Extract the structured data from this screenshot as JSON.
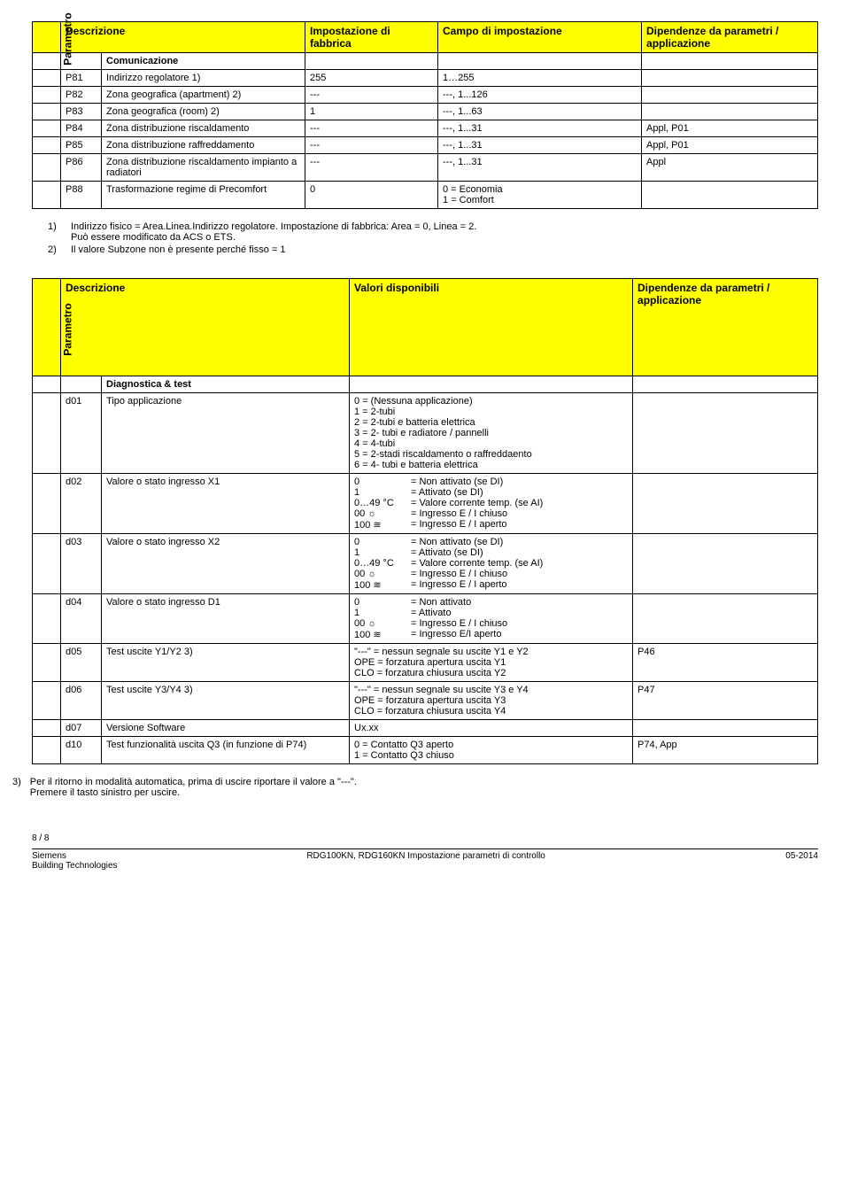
{
  "table1": {
    "headers": [
      "Parametro",
      "Descrizione",
      "Impostazione di fabbrica",
      "Campo di impostazione",
      "Dipendenze da parametri / applicazione"
    ],
    "section": "Comunicazione",
    "rows": [
      {
        "p": "P81",
        "d": "Indirizzo regolatore 1)",
        "f": "255",
        "c": "1…255",
        "dep": ""
      },
      {
        "p": "P82",
        "d": "Zona geografica (apartment) 2)",
        "f": "---",
        "c": "---, 1...126",
        "dep": ""
      },
      {
        "p": "P83",
        "d": "Zona geografica (room) 2)",
        "f": "1",
        "c": "---, 1...63",
        "dep": ""
      },
      {
        "p": "P84",
        "d": "Zona distribuzione riscaldamento",
        "f": "---",
        "c": "---, 1...31",
        "dep": "Appl, P01"
      },
      {
        "p": "P85",
        "d": "Zona distribuzione raffreddamento",
        "f": "---",
        "c": "---, 1...31",
        "dep": "Appl, P01"
      },
      {
        "p": "P86",
        "d": "Zona distribuzione riscaldamento impianto a radiatori",
        "f": "---",
        "c": "---, 1...31",
        "dep": "Appl"
      },
      {
        "p": "P88",
        "d": "Trasformazione regime di Precomfort",
        "f": "0",
        "c": "0 = Economia\n1 = Comfort",
        "dep": ""
      }
    ]
  },
  "notes1": [
    "Indirizzo fisico = Area.Linea.Indirizzo regolatore. Impostazione di fabbrica: Area  = 0, Linea = 2.\nPuò essere modificato da ACS o ETS.",
    "Il valore Subzone non è presente perché fisso = 1"
  ],
  "table2": {
    "headers": [
      "Parametro",
      "Descrizione",
      "Valori disponibili",
      "Dipendenze da parametri / applicazione"
    ],
    "section": "Diagnostica & test",
    "rows": [
      {
        "p": "d01",
        "d": "Tipo applicazione",
        "v": [
          [
            "0 = (Nessuna applicazione)",
            ""
          ],
          [
            "1 = 2-tubi",
            ""
          ],
          [
            "2 = 2-tubi e batteria elettrica",
            ""
          ],
          [
            "3 = 2- tubi e radiatore / pannelli",
            ""
          ],
          [
            "4 = 4-tubi",
            ""
          ],
          [
            "5 = 2-stadi riscaldamento o raffreddaento",
            ""
          ],
          [
            "6 = 4- tubi e batteria elettrica",
            ""
          ]
        ],
        "dep": ""
      },
      {
        "p": "d02",
        "d": "Valore o stato ingresso X1",
        "v": [
          [
            "0",
            "= Non attivato (se DI)"
          ],
          [
            "1",
            "= Attivato (se DI)"
          ],
          [
            "0…49 °C",
            "= Valore corrente temp. (se AI)"
          ],
          [
            "00 ☼",
            "= Ingresso E / I chiuso"
          ],
          [
            "100 ≋",
            "= Ingresso E / I aperto"
          ]
        ],
        "dep": ""
      },
      {
        "p": "d03",
        "d": "Valore o stato ingresso X2",
        "v": [
          [
            "0",
            "= Non attivato (se DI)"
          ],
          [
            "1",
            "= Attivato (se DI)"
          ],
          [
            "0…49 °C",
            "= Valore corrente temp. (se AI)"
          ],
          [
            "00 ☼",
            "= Ingresso E / I chiuso"
          ],
          [
            "100 ≋",
            "= Ingresso E / I aperto"
          ]
        ],
        "dep": ""
      },
      {
        "p": "d04",
        "d": "Valore o stato ingresso D1",
        "v": [
          [
            "0",
            "= Non attivato"
          ],
          [
            "1",
            "= Attivato"
          ],
          [
            "00 ☼",
            "= Ingresso E / I chiuso"
          ],
          [
            "100 ≋",
            "= Ingresso E/I aperto"
          ]
        ],
        "dep": ""
      },
      {
        "p": "d05",
        "d": "Test uscite Y1/Y2   3)",
        "v": [
          [
            "\"---\"   = nessun segnale su uscite Y1 e Y2",
            ""
          ],
          [
            "OPE = forzatura apertura uscita Y1",
            ""
          ],
          [
            "CLO = forzatura chiusura uscita Y2",
            ""
          ]
        ],
        "dep": "P46"
      },
      {
        "p": "d06",
        "d": "Test uscite Y3/Y4   3)",
        "v": [
          [
            "\"---\"   = nessun segnale su uscite Y3 e Y4",
            ""
          ],
          [
            "OPE = forzatura apertura uscita Y3",
            ""
          ],
          [
            "CLO = forzatura chiusura uscita Y4",
            ""
          ]
        ],
        "dep": "P47"
      },
      {
        "p": "d07",
        "d": "Versione Software",
        "v": [
          [
            "Ux.xx",
            ""
          ]
        ],
        "dep": ""
      },
      {
        "p": "d10",
        "d": "Test funzionalità uscita Q3  (in funzione di P74)",
        "v": [
          [
            "0 = Contatto Q3 aperto",
            ""
          ],
          [
            "1 = Contatto Q3 chiuso",
            ""
          ]
        ],
        "dep": "P74, App"
      }
    ]
  },
  "note3": "Per il ritorno in modalità automatica, prima di uscire riportare il valore a  \"---\".\nPremere il tasto sinistro per uscire.",
  "footer": {
    "page": "8 / 8",
    "left1": "Siemens",
    "left2": "Building Technologies",
    "center": "RDG100KN, RDG160KN   Impostazione parametri di controllo",
    "right": "05-2014"
  }
}
